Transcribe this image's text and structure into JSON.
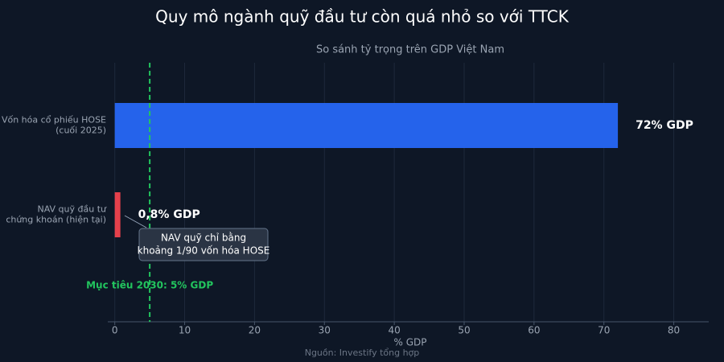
{
  "chart_data": {
    "type": "hbar",
    "title": "Quy mô ngành quỹ đầu tư còn quá nhỏ so với TTCK",
    "subtitle": "So sánh tỷ trọng trên GDP Việt Nam",
    "categories": [
      [
        "Vốn hóa cổ phiếu HOSE",
        "(cuối 2025)"
      ],
      [
        "NAV quỹ đầu tư",
        "chứng khoán (hiện tại)"
      ]
    ],
    "values": [
      72,
      0.8
    ],
    "value_labels": [
      "72% GDP",
      "0,8% GDP"
    ],
    "colors": [
      "#2563eb",
      "#e5404b"
    ],
    "xlim": [
      -1,
      85
    ],
    "xticks": [
      0,
      10,
      20,
      30,
      40,
      50,
      60,
      70,
      80
    ],
    "xlabel": "% GDP",
    "grid": true,
    "target": {
      "value": 5,
      "label": "Mục tiêu 2030: 5% GDP",
      "color": "#22c55e"
    },
    "annotation": [
      "NAV quỹ chỉ bằng",
      "khoảng 1/90 vốn hóa HOSE"
    ],
    "source": "Nguồn: Investify tổng hợp"
  }
}
